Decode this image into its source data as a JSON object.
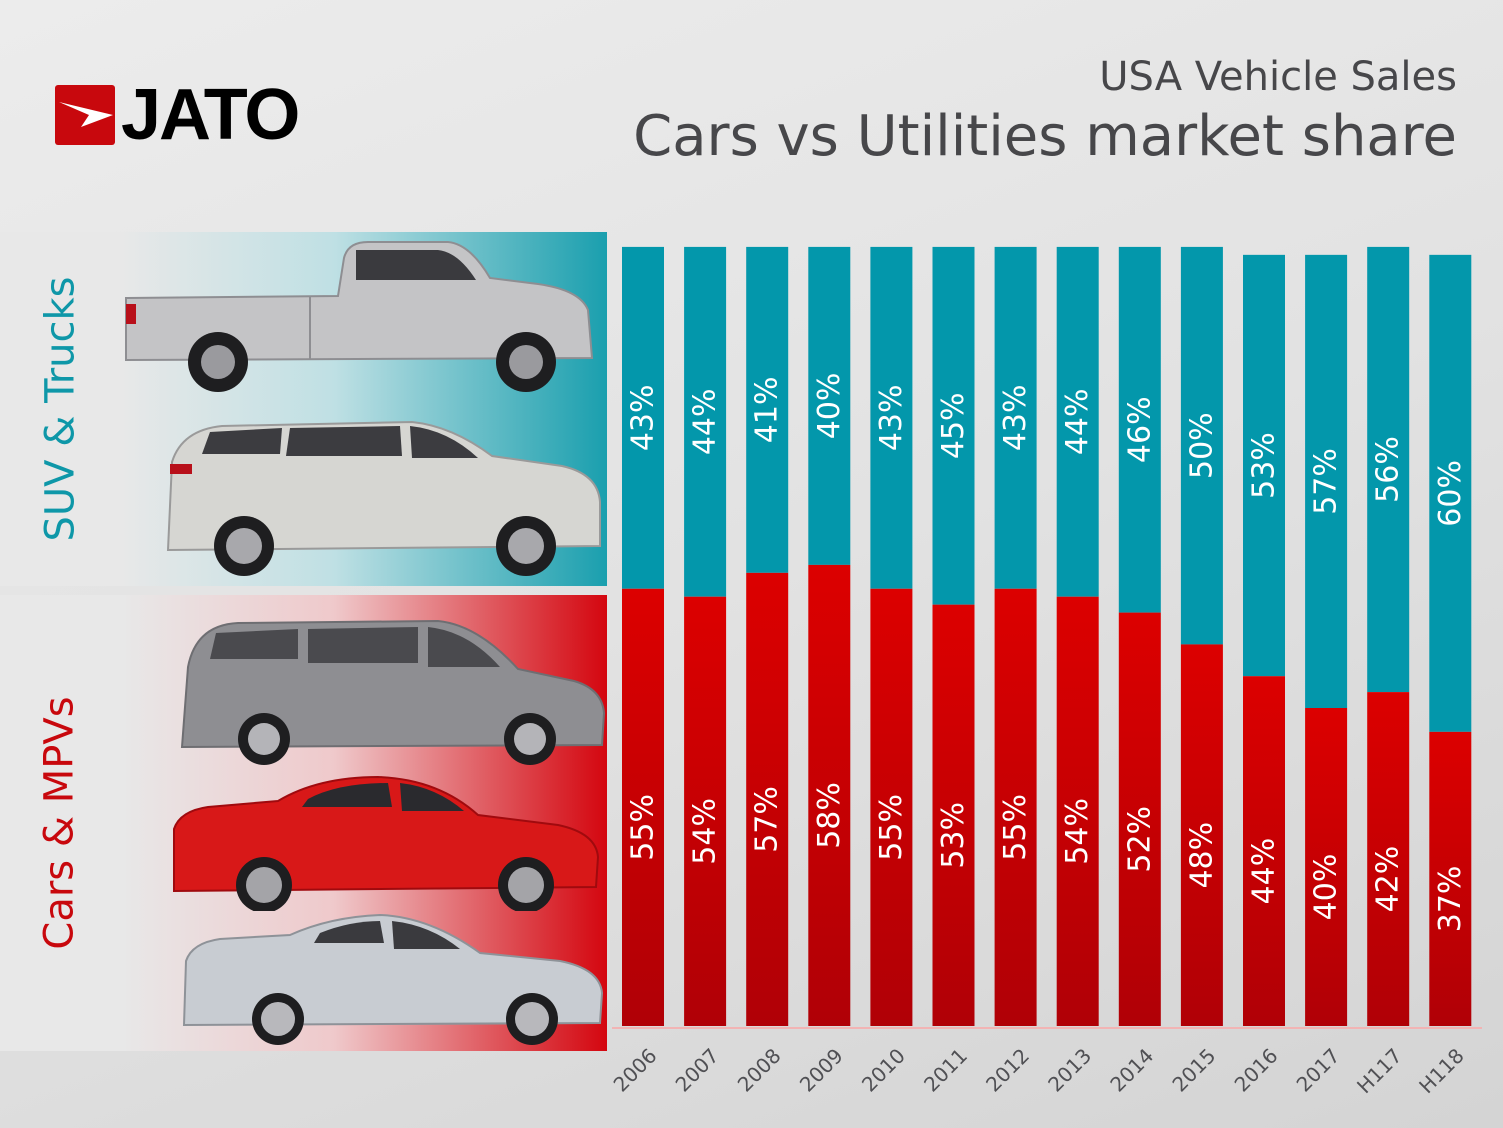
{
  "brand": {
    "logo_text": "JATO"
  },
  "header": {
    "subtitle": "USA Vehicle Sales",
    "title": "Cars vs Utilities market share"
  },
  "panels": {
    "utilities_label": "SUV & Trucks",
    "cars_label": "Cars & MPVs",
    "utilities_vehicles": [
      "pickup-truck",
      "suv"
    ],
    "cars_vehicles": [
      "minivan",
      "sports-coupe",
      "sedan"
    ]
  },
  "colors": {
    "utilities": "#0397ab",
    "cars": "#dc0000",
    "cars_dark": "#b00006",
    "title_text": "#47474a"
  },
  "chart_data": {
    "type": "bar",
    "stacked": true,
    "title": "Cars vs Utilities market share",
    "subtitle": "USA Vehicle Sales",
    "xlabel": "",
    "ylabel": "",
    "ylim": [
      0,
      100
    ],
    "grid": false,
    "categories": [
      "2006",
      "2007",
      "2008",
      "2009",
      "2010",
      "2011",
      "2012",
      "2013",
      "2014",
      "2015",
      "2016",
      "2017",
      "H117",
      "H118"
    ],
    "series": [
      {
        "name": "Cars & MPVs",
        "values": [
          55,
          54,
          57,
          58,
          55,
          53,
          55,
          54,
          52,
          48,
          44,
          40,
          42,
          37
        ],
        "labels": [
          "55%",
          "54%",
          "57%",
          "58%",
          "55%",
          "53%",
          "55%",
          "54%",
          "52%",
          "48%",
          "44%",
          "40%",
          "42%",
          "37%"
        ]
      },
      {
        "name": "SUV & Trucks",
        "values": [
          43,
          44,
          41,
          40,
          43,
          45,
          43,
          44,
          46,
          50,
          53,
          57,
          56,
          60
        ],
        "labels": [
          "43%",
          "44%",
          "41%",
          "40%",
          "43%",
          "45%",
          "43%",
          "44%",
          "46%",
          "50%",
          "53%",
          "57%",
          "56%",
          "60%"
        ]
      }
    ]
  }
}
